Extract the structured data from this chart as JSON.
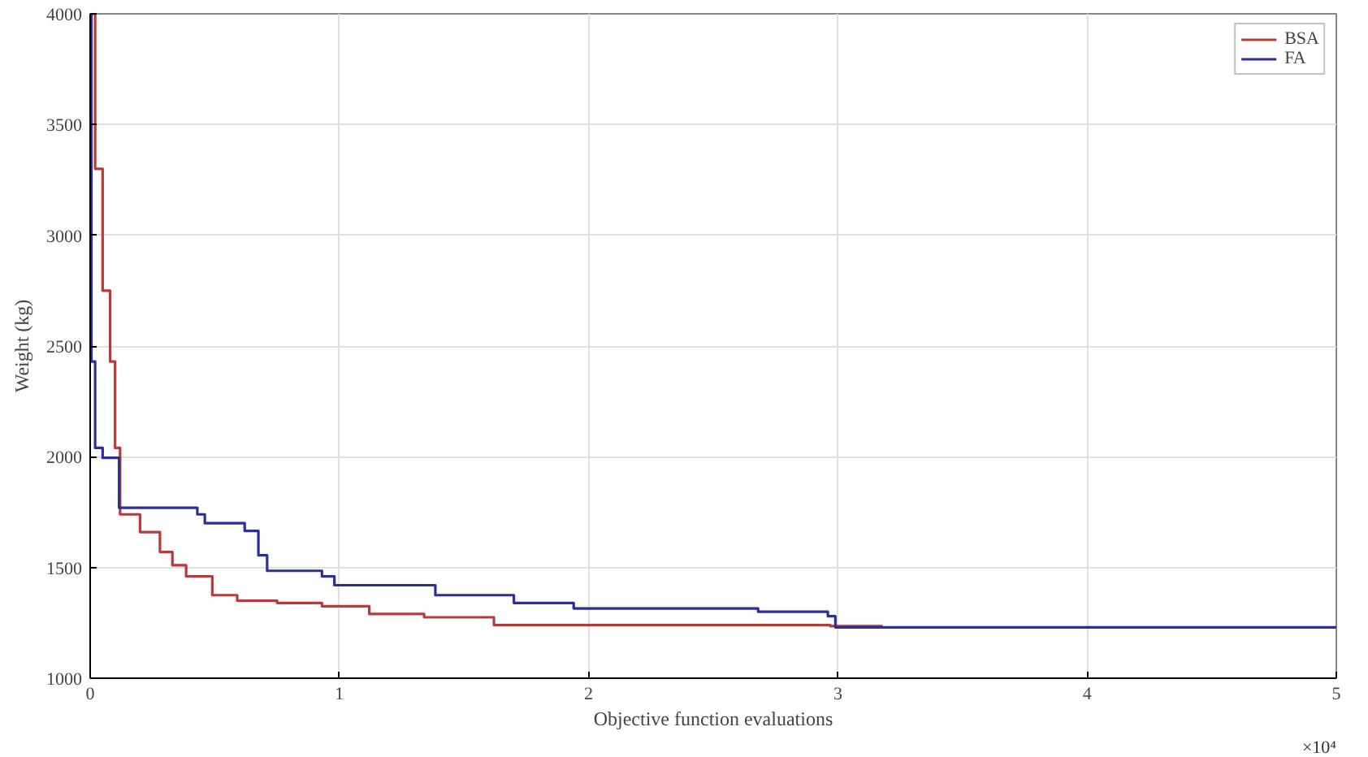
{
  "chart_data": {
    "type": "step",
    "xlabel": "Objective function evaluations",
    "ylabel": "Weight (kg)",
    "annotations": [
      "×10⁴"
    ],
    "xlim": [
      0,
      5
    ],
    "xticks": [
      0,
      1,
      2,
      3,
      4,
      5
    ],
    "ylim": [
      1000,
      4000
    ],
    "yticks": [
      1000,
      1500,
      2000,
      2500,
      3000,
      3500,
      4000
    ],
    "grid": true,
    "legend": "top right",
    "series": [
      {
        "name": "BSA",
        "color": "#b83a3a",
        "x": [
          0,
          0.02,
          0.05,
          0.08,
          0.1,
          0.12,
          0.2,
          0.28,
          0.33,
          0.385,
          0.49,
          0.59,
          0.75,
          0.93,
          1.12,
          1.34,
          1.62,
          2.97,
          3.18
        ],
        "values": [
          4000,
          3300,
          2750,
          2430,
          2040,
          1740,
          1660,
          1570,
          1510,
          1460,
          1375,
          1350,
          1340,
          1325,
          1290,
          1275,
          1240,
          1235,
          1235
        ]
      },
      {
        "name": "FA",
        "color": "#2e2e9a",
        "x": [
          0,
          0.005,
          0.02,
          0.05,
          0.116,
          0.43,
          0.46,
          0.62,
          0.675,
          0.71,
          0.93,
          0.98,
          1.385,
          1.7,
          1.94,
          2.68,
          2.96,
          2.99,
          5
        ],
        "values": [
          4000,
          2430,
          2040,
          1995,
          1770,
          1740,
          1700,
          1665,
          1555,
          1485,
          1460,
          1420,
          1375,
          1340,
          1315,
          1300,
          1280,
          1230,
          1230
        ]
      }
    ]
  }
}
